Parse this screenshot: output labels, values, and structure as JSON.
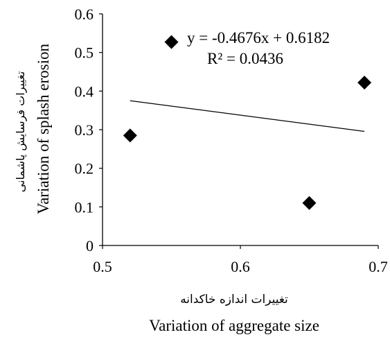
{
  "chart_data": {
    "type": "scatter",
    "title": "",
    "xlabel": "Variation of aggregate size",
    "xlabel_fa": "تغییرات اندازه خاکدانه",
    "ylabel": "Variation of splash erosion",
    "ylabel_fa": "تغییرات فرسایش پاشمانی",
    "xlim": [
      0.5,
      0.7
    ],
    "ylim": [
      0,
      0.6
    ],
    "x_ticks": [
      "0.5",
      "0.6",
      "0.7"
    ],
    "y_ticks": [
      "0",
      "0.1",
      "0.2",
      "0.3",
      "0.4",
      "0.5",
      "0.6"
    ],
    "grid": false,
    "marker": "diamond",
    "marker_color": "#000000",
    "points": [
      {
        "x": 0.52,
        "y": 0.285
      },
      {
        "x": 0.55,
        "y": 0.527
      },
      {
        "x": 0.65,
        "y": 0.11
      },
      {
        "x": 0.69,
        "y": 0.422
      }
    ],
    "trendline": {
      "type": "linear",
      "slope": -0.4676,
      "intercept": 0.6182,
      "x_range": [
        0.52,
        0.69
      ],
      "equation": "y = -0.4676x + 0.6182",
      "r_squared": "R² = 0.0436"
    }
  }
}
